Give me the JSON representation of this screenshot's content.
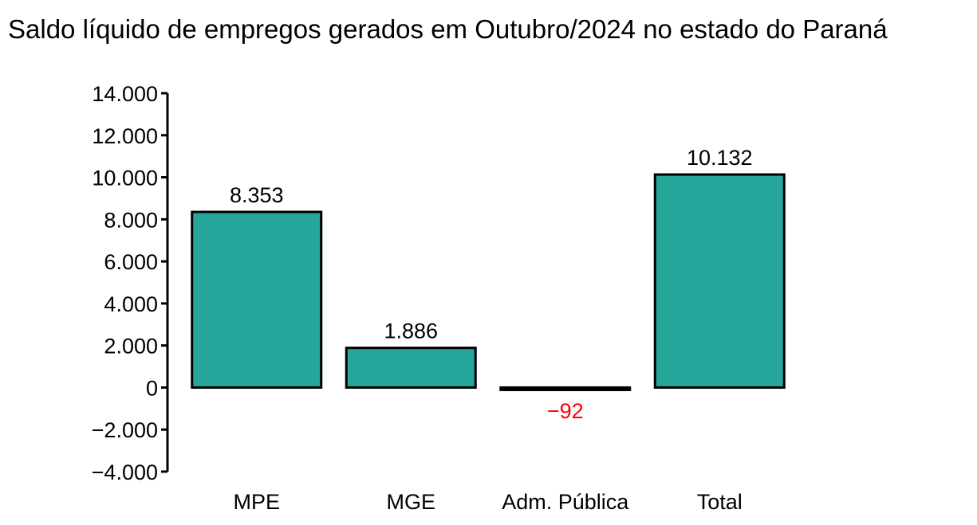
{
  "chart_data": {
    "type": "bar",
    "title": "Saldo líquido de empregos gerados em Outubro/2024 no estado do Paraná",
    "xlabel": "",
    "ylabel": "",
    "categories": [
      "MPE",
      "MGE",
      "Adm. Pública",
      "Total"
    ],
    "values": [
      8353,
      1886,
      -92,
      10132
    ],
    "value_labels": [
      "8.353",
      "1.886",
      "−92",
      "10.132"
    ],
    "ylim": [
      -4000,
      14000
    ],
    "yticks": [
      14000,
      12000,
      10000,
      8000,
      6000,
      4000,
      2000,
      0,
      -2000,
      -4000
    ],
    "ytick_labels": [
      "14.000",
      "12.000",
      "10.000",
      "8.000",
      "6.000",
      "4.000",
      "2.000",
      "0",
      "−2.000",
      "−4.000"
    ],
    "grid": false,
    "legend": "none",
    "colors": {
      "bar": "#26a69a",
      "positive_label": "#000000",
      "negative_label": "#ff0000"
    }
  }
}
